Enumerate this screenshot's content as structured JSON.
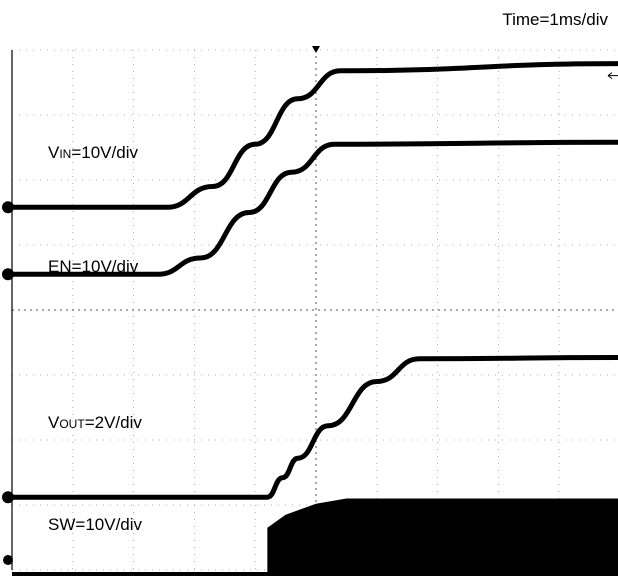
{
  "header": {
    "time_base": "Time=1ms/div"
  },
  "chart_data": {
    "type": "line",
    "title": "",
    "timebase": "1ms/div",
    "grid": true,
    "x_divisions": 10,
    "y_divisions": 8,
    "xlim_div": [
      0,
      10
    ],
    "ylim_div": [
      0,
      8
    ],
    "series": [
      {
        "name": "VIN",
        "label_main": "V",
        "label_sub": "IN",
        "label_tail": "=10V/div",
        "kind": "line",
        "x_div": [
          0,
          2.55,
          3.3,
          4.0,
          4.7,
          5.4,
          10
        ],
        "y_div": [
          5.58,
          5.58,
          5.9,
          6.55,
          7.25,
          7.68,
          7.79
        ]
      },
      {
        "name": "EN",
        "label_main": "EN",
        "label_sub": "",
        "label_tail": "=10V/div",
        "kind": "line",
        "x_div": [
          0,
          2.4,
          3.1,
          3.9,
          4.6,
          5.3,
          10
        ],
        "y_div": [
          4.55,
          4.55,
          4.8,
          5.5,
          6.12,
          6.55,
          6.58
        ]
      },
      {
        "name": "VOUT",
        "label_main": "V",
        "label_sub": "OUT",
        "label_tail": "=2V/div",
        "kind": "line",
        "x_div": [
          0,
          4.2,
          4.45,
          4.7,
          5.2,
          6.0,
          6.7,
          10
        ],
        "y_div": [
          1.12,
          1.12,
          1.42,
          1.72,
          2.22,
          2.9,
          3.25,
          3.27
        ]
      },
      {
        "name": "SW",
        "label_main": "SW",
        "label_sub": "",
        "label_tail": "=10V/div",
        "kind": "fill",
        "x_div": [
          4.2,
          4.2,
          4.5,
          5.0,
          5.5,
          10
        ],
        "y_div": [
          -0.1,
          0.65,
          0.85,
          1.02,
          1.1,
          1.1
        ]
      }
    ]
  }
}
